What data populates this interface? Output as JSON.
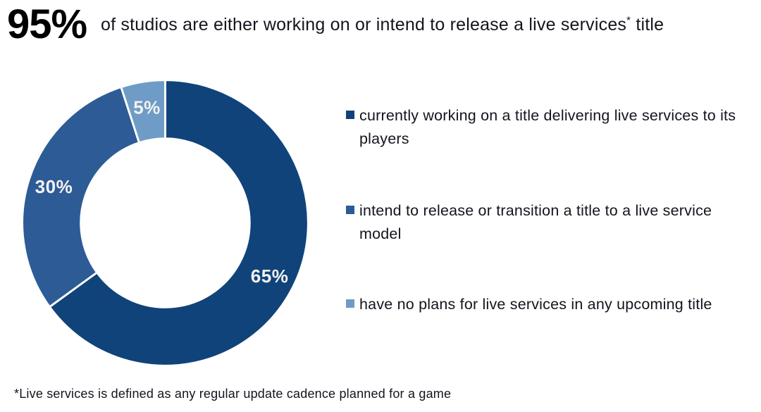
{
  "header": {
    "stat": "95%",
    "title_prefix": "of studios are either working on or intend to release a live services",
    "title_sup": "*",
    "title_suffix": " title"
  },
  "chart_data": {
    "type": "pie",
    "subtype": "donut",
    "title": "95% of studios are either working on or intend to release a live services title",
    "units": "percent of studios",
    "start_angle_deg": 0,
    "direction": "clockwise",
    "inner_radius_ratio": 0.59,
    "label_color": "#f2f2f2",
    "legend_position": "right",
    "segments": [
      {
        "label": "currently working on a title delivering live services to its players",
        "value": 65,
        "display": "65%",
        "color": "#104379"
      },
      {
        "label": "intend to release or transition a title to a live service model",
        "value": 30,
        "display": "30%",
        "color": "#2d5b96"
      },
      {
        "label": "have no plans for live services in any upcoming title",
        "value": 5,
        "display": "5%",
        "color": "#6f9cc6"
      }
    ]
  },
  "footnote": "*Live services is defined as any regular update cadence planned for a game"
}
